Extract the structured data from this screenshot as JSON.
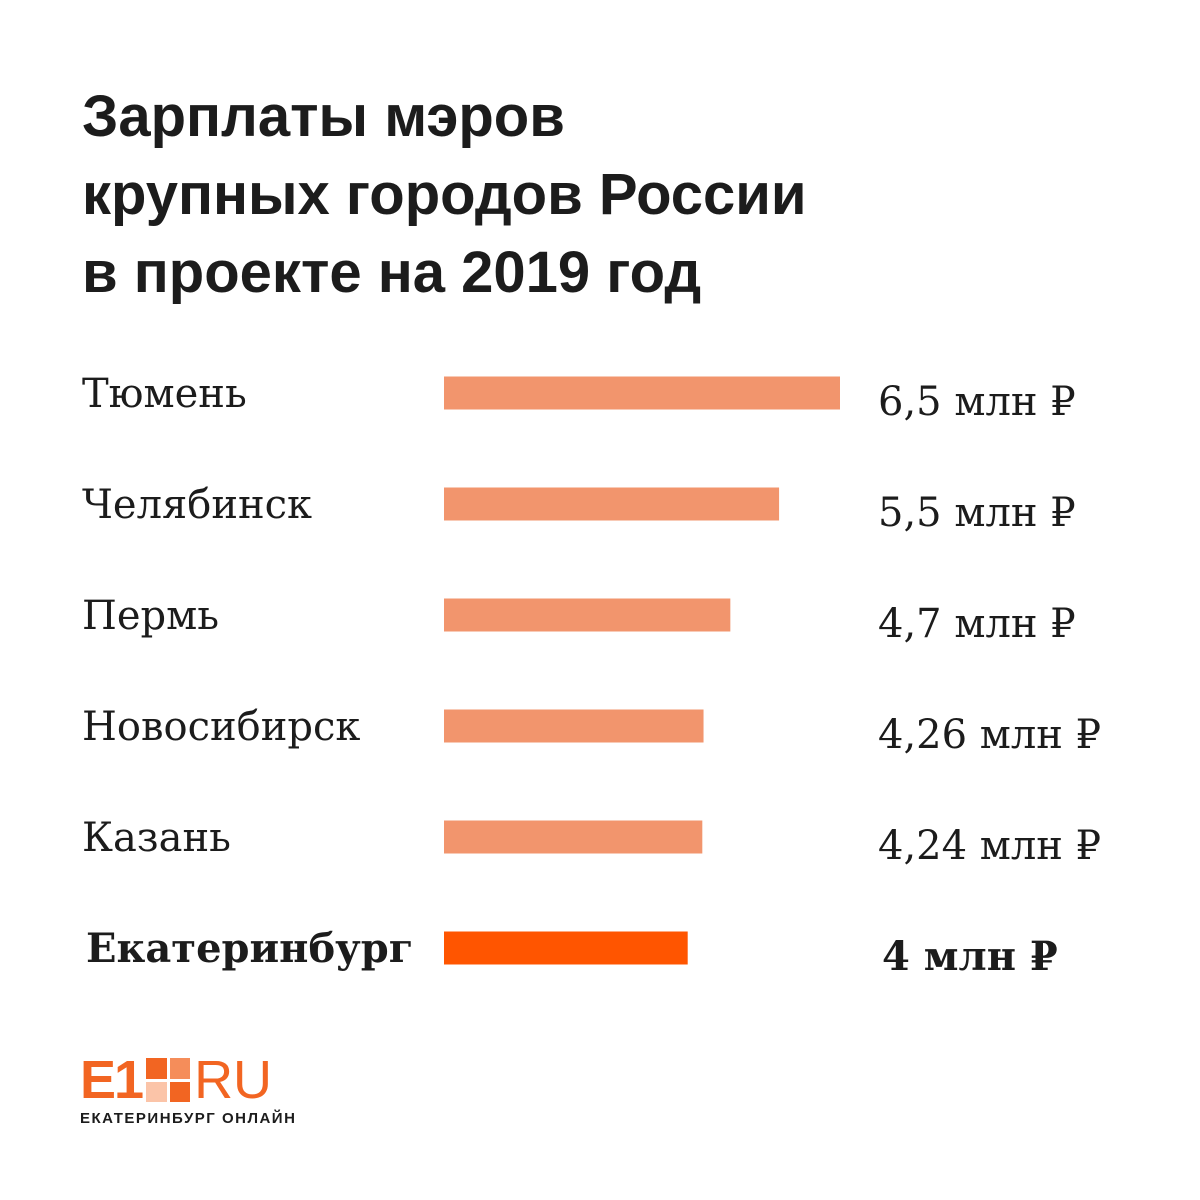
{
  "title_lines": [
    "Зарплаты мэров",
    "крупных городов России",
    "в проекте на 2019 год"
  ],
  "colors": {
    "bar": "#f2956d",
    "highlight_bar": "#ff5500",
    "text": "#1c1c1c"
  },
  "chart_data": {
    "type": "bar",
    "orientation": "horizontal",
    "title": "Зарплаты мэров крупных городов России в проекте на 2019 год",
    "unit": "млн ₽",
    "categories": [
      "Тюмень",
      "Челябинск",
      "Пермь",
      "Новосибирск",
      "Казань",
      "Екатеринбург"
    ],
    "values": [
      6.5,
      5.5,
      4.7,
      4.26,
      4.24,
      4
    ],
    "value_labels": [
      "6,5 млн ₽",
      "5,5 млн ₽",
      "4,7 млн ₽",
      "4,26 млн ₽",
      "4,24 млн ₽",
      "4 млн ₽"
    ],
    "highlight": "Екатеринбург",
    "xlim": [
      0,
      6.5
    ],
    "grid": false,
    "legend": "none"
  },
  "logo": {
    "e1": "E1",
    "ru": "RU",
    "subtitle": "ЕКАТЕРИНБУРГ ОНЛАЙН"
  }
}
